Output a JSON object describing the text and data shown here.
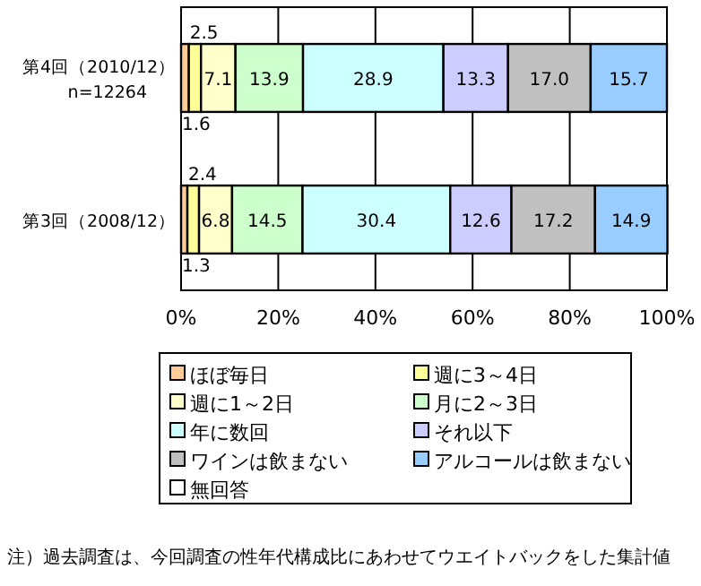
{
  "chart_data": {
    "type": "bar",
    "orientation": "horizontal",
    "stacked": true,
    "categories": [
      "第4回（2010/12）\nn=12264",
      "第3回（2008/12）"
    ],
    "series": [
      {
        "name": "ほぼ毎日",
        "color": "#ffcc99",
        "values": [
          1.6,
          1.3
        ],
        "value_labels": [
          "1.6",
          "1.3"
        ]
      },
      {
        "name": "週に3～4日",
        "color": "#ffff99",
        "values": [
          2.5,
          2.4
        ],
        "value_labels": [
          "2.5",
          "2.4"
        ]
      },
      {
        "name": "週に1～2日",
        "color": "#ffffcc",
        "values": [
          7.1,
          6.8
        ],
        "value_labels": [
          "7.1",
          "6.8"
        ]
      },
      {
        "name": "月に2～3日",
        "color": "#ccffcc",
        "values": [
          13.9,
          14.5
        ],
        "value_labels": [
          "13.9",
          "14.5"
        ]
      },
      {
        "name": "年に数回",
        "color": "#ccffff",
        "values": [
          28.9,
          30.4
        ],
        "value_labels": [
          "28.9",
          "30.4"
        ]
      },
      {
        "name": "それ以下",
        "color": "#ccccff",
        "values": [
          13.3,
          12.6
        ],
        "value_labels": [
          "13.3",
          "12.6"
        ]
      },
      {
        "name": "ワインは飲まない",
        "color": "#c0c0c0",
        "values": [
          17.0,
          17.2
        ],
        "value_labels": [
          "17.0",
          "17.2"
        ]
      },
      {
        "name": "アルコールは飲まない",
        "color": "#99ccff",
        "values": [
          15.7,
          14.9
        ],
        "value_labels": [
          "15.7",
          "14.9"
        ]
      },
      {
        "name": "無回答",
        "color": "#ffffff",
        "values": [
          null,
          null
        ]
      }
    ],
    "xlim": [
      0,
      100
    ],
    "xticks": [
      {
        "value": 0,
        "label": "0%"
      },
      {
        "value": 20,
        "label": "20%"
      },
      {
        "value": 40,
        "label": "40%"
      },
      {
        "value": 60,
        "label": "60%"
      },
      {
        "value": 80,
        "label": "80%"
      },
      {
        "value": 100,
        "label": "100%"
      }
    ],
    "grid": "x",
    "legend": "bottom",
    "annotations": [
      "注）過去調査は、今回調査の性年代構成比にあわせてウエイトバックをした集計値"
    ]
  }
}
